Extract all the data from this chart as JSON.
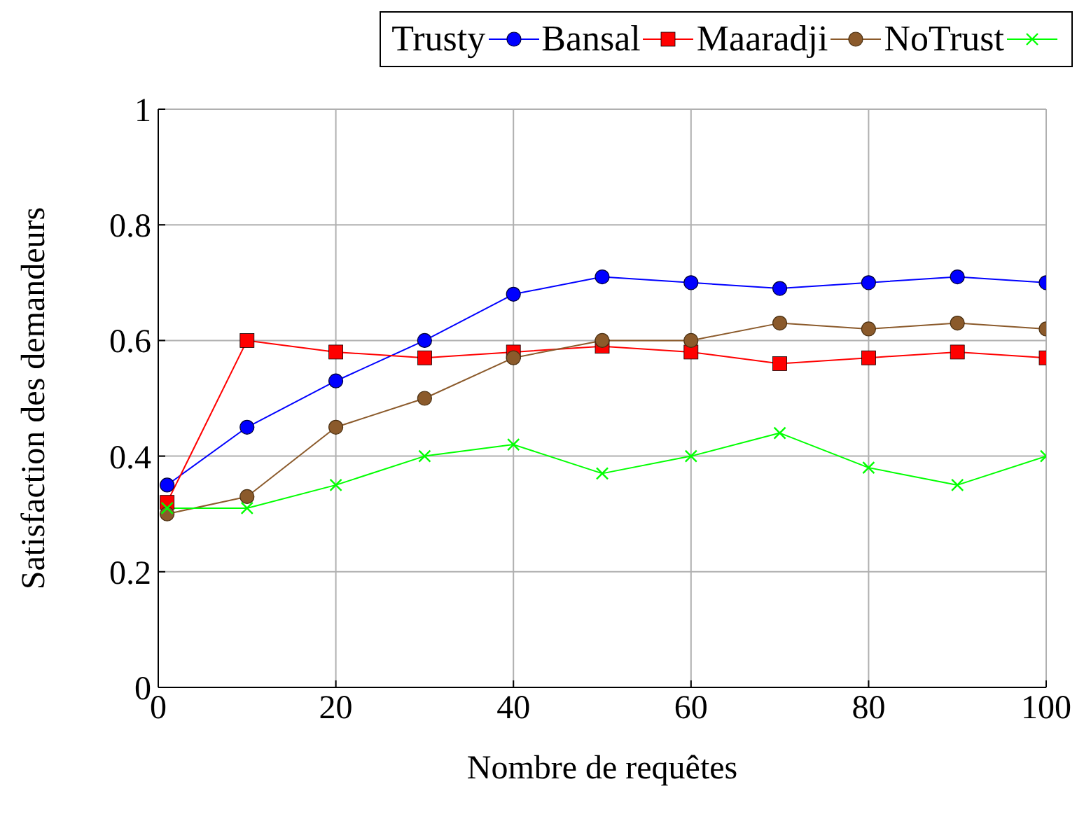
{
  "chart_data": {
    "type": "line",
    "xlabel": "Nombre de requêtes",
    "ylabel": "Satisfaction des demandeurs",
    "x": [
      1,
      10,
      20,
      30,
      40,
      50,
      60,
      70,
      80,
      90,
      100
    ],
    "xlim": [
      0,
      100
    ],
    "xticks": [
      0,
      20,
      40,
      60,
      80,
      100
    ],
    "ylim": [
      0,
      1
    ],
    "yticks": [
      0,
      0.2,
      0.4,
      0.6,
      0.8,
      1
    ],
    "grid": true,
    "legend": "top",
    "series": [
      {
        "name": "Trusty",
        "color": "#0000ff",
        "marker": "circle",
        "values": [
          0.35,
          0.45,
          0.53,
          0.6,
          0.68,
          0.71,
          0.7,
          0.69,
          0.7,
          0.71,
          0.7
        ]
      },
      {
        "name": "Bansal",
        "color": "#ff0000",
        "marker": "square",
        "values": [
          0.32,
          0.6,
          0.58,
          0.57,
          0.58,
          0.59,
          0.58,
          0.56,
          0.57,
          0.58,
          0.57
        ]
      },
      {
        "name": "Maaradji",
        "color": "#8b5a2b",
        "marker": "circle",
        "values": [
          0.3,
          0.33,
          0.45,
          0.5,
          0.57,
          0.6,
          0.6,
          0.63,
          0.62,
          0.63,
          0.62
        ]
      },
      {
        "name": "NoTrust",
        "color": "#00ff00",
        "marker": "cross",
        "values": [
          0.31,
          0.31,
          0.35,
          0.4,
          0.42,
          0.37,
          0.4,
          0.44,
          0.38,
          0.35,
          0.4
        ]
      }
    ]
  }
}
